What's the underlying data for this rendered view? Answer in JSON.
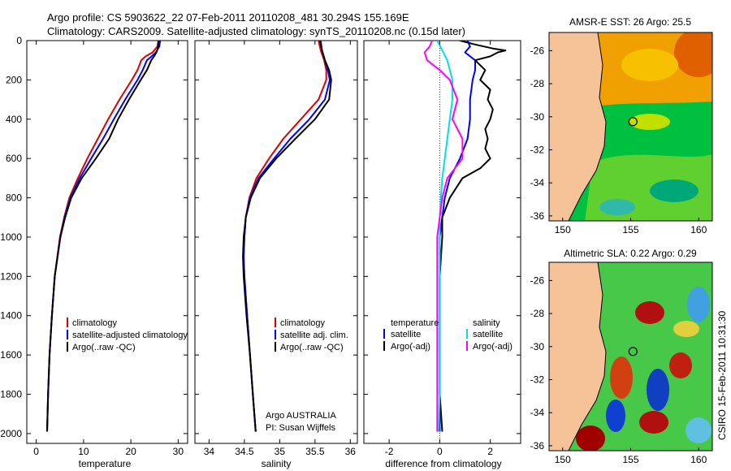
{
  "figure": {
    "title_line1": "Argo profile: CS 5903622_22 07-Feb-2011 20110208_481 30.294S 155.169E",
    "title_line2": "Climatology: CARS2009. Satellite-adjusted climatology: synTS_20110208.nc (0.15d later)",
    "credit": "CSIRO 15-Feb-2011 10:31:30"
  },
  "colors": {
    "climatology": "#dd0000",
    "satellite": "#0000ff",
    "argo": "#000000",
    "temp_diff_satellite": "#00e0e8",
    "salinity_diff_argo": "#ff00ff",
    "land": "#f5c397"
  },
  "chart_data": [
    {
      "type": "line",
      "name": "temperature-profile",
      "xlabel": "temperature",
      "ylabel": "",
      "xlim": [
        -2,
        32
      ],
      "ylim": [
        2050,
        0
      ],
      "xticks": [
        0,
        10,
        20,
        30
      ],
      "yticks": [
        0,
        200,
        400,
        600,
        800,
        1000,
        1200,
        1400,
        1600,
        1800,
        2000
      ],
      "legend": {
        "position": "lower-right",
        "entries": [
          "climatology",
          "satellite-adjusted climatology",
          "Argo(..raw -QC)"
        ]
      },
      "series": [
        {
          "name": "climatology",
          "color": "#dd0000",
          "depth": [
            0,
            30,
            60,
            80,
            100,
            150,
            200,
            300,
            400,
            500,
            600,
            700,
            800,
            900,
            1000,
            1200,
            1400,
            1600,
            1800,
            1990
          ],
          "values": [
            25.8,
            25.6,
            24.6,
            23.1,
            22.2,
            21.4,
            20.2,
            17.6,
            15.2,
            13.0,
            10.8,
            8.8,
            7.0,
            5.9,
            5.0,
            3.9,
            3.3,
            2.8,
            2.5,
            2.3
          ]
        },
        {
          "name": "satellite-adjusted climatology",
          "color": "#0000ff",
          "depth": [
            0,
            30,
            60,
            80,
            100,
            150,
            200,
            300,
            400,
            500,
            600,
            700,
            800,
            900,
            1000,
            1200,
            1400,
            1600,
            1800,
            1990
          ],
          "values": [
            26.2,
            26.0,
            25.3,
            24.4,
            23.4,
            22.5,
            21.4,
            18.8,
            16.4,
            14.1,
            11.6,
            9.2,
            7.2,
            6.0,
            5.1,
            3.9,
            3.3,
            2.8,
            2.5,
            2.3
          ]
        },
        {
          "name": "Argo(..raw -QC)",
          "color": "#000000",
          "depth": [
            0,
            30,
            60,
            80,
            100,
            150,
            200,
            300,
            400,
            500,
            600,
            700,
            800,
            900,
            1000,
            1200,
            1400,
            1600,
            1800,
            1990
          ],
          "values": [
            25.9,
            25.8,
            25.4,
            24.9,
            24.3,
            23.4,
            22.1,
            19.6,
            17.3,
            15.4,
            12.6,
            9.6,
            7.4,
            6.1,
            5.1,
            3.9,
            3.3,
            2.8,
            2.5,
            2.3
          ]
        }
      ]
    },
    {
      "type": "line",
      "name": "salinity-profile",
      "xlabel": "salinity",
      "ylabel": "",
      "xlim": [
        33.8,
        36.1
      ],
      "ylim": [
        2050,
        0
      ],
      "xticks": [
        34,
        34.5,
        35,
        35.5,
        36
      ],
      "yticks": [
        0,
        200,
        400,
        600,
        800,
        1000,
        1200,
        1400,
        1600,
        1800,
        2000
      ],
      "legend": {
        "position": "lower-right",
        "entries": [
          "climatology",
          "satellite adj. clim.",
          "Argo(..raw -QC)"
        ]
      },
      "annotation_lines": [
        "Argo AUSTRALIA",
        "PI: Susan Wijffels"
      ],
      "series": [
        {
          "name": "climatology",
          "color": "#dd0000",
          "depth": [
            0,
            50,
            100,
            150,
            200,
            300,
            400,
            500,
            600,
            700,
            800,
            900,
            1000,
            1100,
            1200,
            1400,
            1600,
            1800,
            1990
          ],
          "values": [
            35.55,
            35.58,
            35.63,
            35.66,
            35.66,
            35.55,
            35.3,
            35.05,
            34.85,
            34.67,
            34.57,
            34.52,
            34.5,
            34.49,
            34.5,
            34.54,
            34.58,
            34.62,
            34.66
          ]
        },
        {
          "name": "satellite adj. clim.",
          "color": "#0000ff",
          "depth": [
            0,
            50,
            100,
            150,
            200,
            300,
            400,
            500,
            600,
            700,
            800,
            900,
            1000,
            1100,
            1200,
            1400,
            1600,
            1800,
            1990
          ],
          "values": [
            35.58,
            35.6,
            35.64,
            35.68,
            35.71,
            35.64,
            35.42,
            35.15,
            34.92,
            34.7,
            34.58,
            34.52,
            34.5,
            34.49,
            34.5,
            34.54,
            34.58,
            34.62,
            34.66
          ]
        },
        {
          "name": "Argo(..raw -QC)",
          "color": "#000000",
          "depth": [
            0,
            50,
            100,
            150,
            200,
            300,
            400,
            500,
            600,
            700,
            800,
            900,
            1000,
            1100,
            1200,
            1400,
            1600,
            1800,
            1990
          ],
          "values": [
            35.57,
            35.6,
            35.64,
            35.7,
            35.73,
            35.7,
            35.5,
            35.22,
            34.95,
            34.72,
            34.59,
            34.52,
            34.49,
            34.48,
            34.49,
            34.53,
            34.58,
            34.62,
            34.66
          ]
        }
      ]
    },
    {
      "type": "line",
      "name": "difference-profile",
      "xlabel": "difference from climatology",
      "ylabel": "",
      "xlim": [
        -3,
        3.2
      ],
      "ylim": [
        2050,
        0
      ],
      "xticks": [
        -2,
        0,
        2
      ],
      "yticks": [
        0,
        200,
        400,
        600,
        800,
        1000,
        1200,
        1400,
        1600,
        1800,
        2000
      ],
      "legend": {
        "position": "lower-center",
        "headers": [
          "temperature",
          "salinity"
        ],
        "entries": [
          "satellite",
          "Argo(-adj)",
          "satellite",
          "Argo(-adj)"
        ]
      },
      "series": [
        {
          "name": "temperature satellite",
          "color": "#0000ff",
          "depth": [
            0,
            30,
            60,
            100,
            150,
            200,
            300,
            400,
            500,
            600,
            700,
            800,
            900,
            1000,
            1200,
            1400,
            1600,
            1800,
            1990
          ],
          "values": [
            1.1,
            1.2,
            1.0,
            1.4,
            1.4,
            1.3,
            1.2,
            1.2,
            1.1,
            0.8,
            0.4,
            0.2,
            0.1,
            0.0,
            0.0,
            0.0,
            0.0,
            0.0,
            0.0
          ]
        },
        {
          "name": "temperature Argo(-adj)",
          "color": "#000000",
          "depth": [
            0,
            20,
            40,
            50,
            60,
            80,
            100,
            150,
            200,
            250,
            300,
            350,
            400,
            450,
            500,
            550,
            600,
            650,
            700,
            800,
            900,
            1000,
            1200,
            1400,
            1600,
            1800,
            1990
          ],
          "values": [
            0.8,
            1.4,
            2.1,
            2.6,
            2.3,
            2.0,
            1.4,
            1.8,
            1.6,
            2.0,
            1.9,
            2.1,
            2.0,
            1.8,
            1.9,
            1.8,
            2.0,
            1.6,
            0.9,
            0.4,
            0.1,
            0.1,
            0.0,
            0.0,
            0.0,
            0.0,
            0.1
          ]
        },
        {
          "name": "salinity satellite",
          "color": "#00e0e8",
          "depth": [
            0,
            50,
            100,
            200,
            300,
            400,
            500,
            600,
            700,
            800,
            900,
            1000,
            1200,
            1400,
            1600,
            1800,
            1990
          ],
          "values": [
            -0.1,
            0.1,
            0.3,
            0.5,
            0.5,
            0.4,
            0.3,
            0.2,
            0.1,
            0.05,
            0.0,
            0.0,
            0.0,
            0.0,
            0.0,
            0.0,
            -0.05
          ]
        },
        {
          "name": "salinity Argo(-adj)",
          "color": "#ff00ff",
          "depth": [
            0,
            30,
            60,
            100,
            150,
            200,
            300,
            400,
            500,
            600,
            650,
            700,
            800,
            900,
            1000,
            1200,
            1400,
            1600,
            1800,
            1990
          ],
          "values": [
            -0.3,
            -0.4,
            -0.6,
            -0.5,
            0.0,
            0.4,
            0.7,
            0.5,
            0.9,
            0.9,
            0.6,
            0.3,
            0.1,
            0.0,
            -0.1,
            -0.1,
            -0.1,
            -0.1,
            -0.1,
            -0.1
          ]
        }
      ]
    },
    {
      "type": "heatmap",
      "name": "sst-map",
      "title": "AMSR-E SST: 26 Argo: 25.5",
      "xlim": [
        149,
        161
      ],
      "ylim": [
        -36.3,
        -24.9
      ],
      "xticks": [
        150,
        155,
        160
      ],
      "yticks": [
        -26,
        -28,
        -30,
        -32,
        -34,
        -36
      ],
      "marker": {
        "lon": 155.169,
        "lat": -30.294
      }
    },
    {
      "type": "heatmap",
      "name": "sla-map",
      "title": "Altimetric SLA: 0.22 Argo: 0.29",
      "xlim": [
        149,
        161
      ],
      "ylim": [
        -36.3,
        -24.9
      ],
      "xticks": [
        150,
        155,
        160
      ],
      "yticks": [
        -26,
        -28,
        -30,
        -32,
        -34,
        -36
      ],
      "marker": {
        "lon": 155.169,
        "lat": -30.294
      }
    }
  ]
}
